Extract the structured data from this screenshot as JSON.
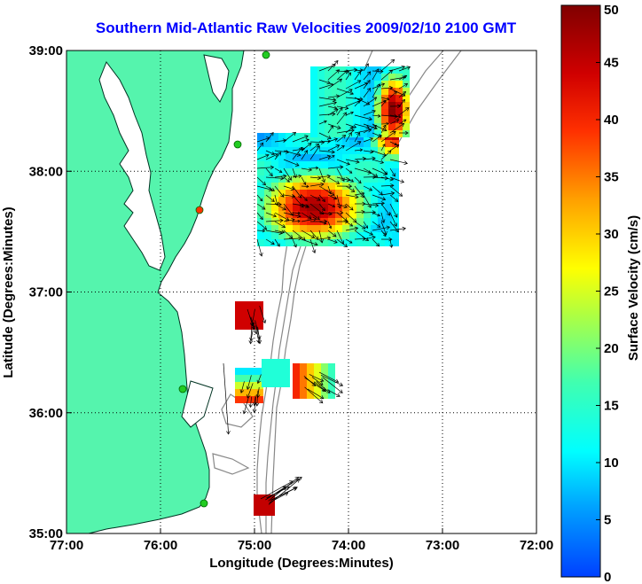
{
  "title": "Southern Mid-Atlantic Raw Velocities 2009/02/10 2100 GMT",
  "x_axis": {
    "label": "Longitude (Degrees:Minutes)",
    "ticks": [
      "77:00",
      "76:00",
      "75:00",
      "74:00",
      "73:00",
      "72:00"
    ]
  },
  "y_axis": {
    "label": "Latitude (Degrees:Minutes)",
    "ticks": [
      "39:00",
      "38:00",
      "37:00",
      "36:00",
      "35:00"
    ]
  },
  "colorbar": {
    "label": "Surface Velocity (cm/s)",
    "ticks": [
      "50",
      "45",
      "40",
      "35",
      "30",
      "25",
      "20",
      "15",
      "10",
      "5",
      "0"
    ],
    "min": 0,
    "max": 50
  },
  "colors": {
    "land": "#55f4ad",
    "title": "#0000ff",
    "bathymetry": "#888888",
    "station": "#22cc22",
    "station_alt": "#ff3300"
  },
  "map": {
    "lon_range": [
      -77,
      -72
    ],
    "lat_range": [
      35,
      39
    ],
    "grid": "dotted"
  }
}
